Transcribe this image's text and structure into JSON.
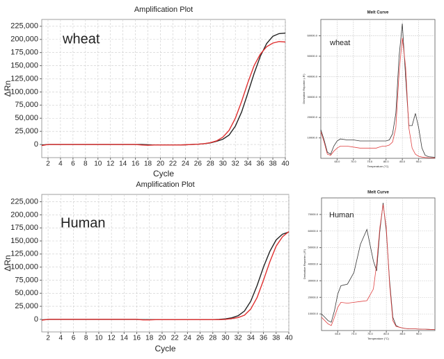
{
  "chart_data": [
    {
      "type": "line",
      "title": "Amplification Plot",
      "annotation": "wheat",
      "xlabel": "Cycle",
      "ylabel": "ΔRn",
      "grid": true,
      "x": [
        1,
        2,
        3,
        4,
        5,
        6,
        7,
        8,
        9,
        10,
        11,
        12,
        13,
        14,
        15,
        16,
        17,
        18,
        19,
        20,
        21,
        22,
        23,
        24,
        25,
        26,
        27,
        28,
        29,
        30,
        31,
        32,
        33,
        34,
        35,
        36,
        37,
        38,
        39,
        40
      ],
      "xlim": [
        1,
        40
      ],
      "xticks": [
        2,
        4,
        6,
        8,
        10,
        12,
        14,
        16,
        18,
        20,
        22,
        24,
        26,
        28,
        30,
        32,
        34,
        36,
        38,
        40
      ],
      "ylim": [
        -25000,
        238000
      ],
      "yticks": [
        0,
        {
          "value": 25000,
          "label": "25,000"
        },
        {
          "value": 50000,
          "label": "50,000"
        },
        {
          "value": 75000,
          "label": "75,000"
        },
        {
          "value": 100000,
          "label": "100,000"
        },
        {
          "value": 125000,
          "label": "125,000"
        },
        {
          "value": 150000,
          "label": "150,000"
        },
        {
          "value": 175000,
          "label": "175,000"
        },
        {
          "value": 200000,
          "label": "200,000"
        },
        {
          "value": 225000,
          "label": "225,000"
        }
      ],
      "series": [
        {
          "color": "#222222",
          "values": [
            -1000,
            0,
            0,
            0,
            0,
            0,
            0,
            0,
            0,
            0,
            0,
            0,
            0,
            0,
            0,
            0,
            0,
            -500,
            -1000,
            -1000,
            -1000,
            -1000,
            -1000,
            -500,
            0,
            500,
            1500,
            3000,
            6000,
            10000,
            18000,
            35000,
            62000,
            98000,
            135000,
            168000,
            192000,
            206000,
            211000,
            212000
          ]
        },
        {
          "color": "#e03030",
          "values": [
            -2000,
            0,
            0,
            0,
            0,
            0,
            0,
            0,
            0,
            0,
            0,
            0,
            0,
            0,
            0,
            0,
            -1000,
            -1500,
            -1000,
            -1000,
            -1000,
            -1000,
            -1000,
            -500,
            0,
            500,
            1500,
            3500,
            7000,
            14000,
            27000,
            50000,
            82000,
            118000,
            150000,
            172000,
            186000,
            193000,
            196000,
            195000
          ]
        }
      ]
    },
    {
      "type": "line",
      "title": "Melt Curve",
      "annotation": "wheat",
      "xlabel": "Temperature (°C)",
      "ylabel": "Derivative Reporter (-R')",
      "grid": true,
      "x": [
        60,
        61,
        62,
        63,
        64,
        65,
        66,
        68,
        70,
        72,
        74,
        76,
        77,
        78,
        79,
        80,
        81,
        82,
        83,
        84,
        85,
        86,
        87,
        88,
        89,
        90,
        91,
        92,
        93,
        95
      ],
      "xlim": [
        60,
        95
      ],
      "xticks": [
        {
          "value": 65,
          "label": "65.0"
        },
        {
          "value": 70,
          "label": "70.0"
        },
        {
          "value": 75,
          "label": "75.0"
        },
        {
          "value": 80,
          "label": "80.0"
        },
        {
          "value": 85,
          "label": "85.0"
        },
        {
          "value": 90,
          "label": "90.0"
        }
      ],
      "ylim": [
        0,
        68000
      ],
      "yticks": [
        {
          "value": 10000,
          "label": "10000.0"
        },
        {
          "value": 20000,
          "label": "20000.0"
        },
        {
          "value": 30000,
          "label": "30000.0"
        },
        {
          "value": 40000,
          "label": "40000.0"
        },
        {
          "value": 50000,
          "label": "50000.0"
        },
        {
          "value": 60000,
          "label": "60000.0"
        }
      ],
      "series": [
        {
          "color": "#333333",
          "values": [
            14000,
            9000,
            3000,
            2000,
            6000,
            8500,
            9500,
            9000,
            9000,
            8500,
            8500,
            8500,
            8500,
            8500,
            8500,
            8500,
            9000,
            12000,
            22000,
            50000,
            66000,
            40000,
            16000,
            16000,
            22000,
            15000,
            5000,
            1500,
            800,
            500
          ]
        },
        {
          "color": "#e04040",
          "values": [
            13000,
            8000,
            2000,
            1500,
            3500,
            5000,
            6000,
            6000,
            5500,
            5000,
            5000,
            5000,
            5000,
            5500,
            6000,
            6000,
            6500,
            8000,
            15000,
            42000,
            59000,
            45000,
            15000,
            5000,
            2000,
            1000,
            600,
            400,
            300,
            200
          ]
        }
      ]
    },
    {
      "type": "line",
      "title": "Amplification Plot",
      "annotation": "Human",
      "xlabel": "Cycle",
      "ylabel": "ΔRn",
      "grid": true,
      "x": [
        1,
        2,
        3,
        4,
        5,
        6,
        7,
        8,
        9,
        10,
        11,
        12,
        13,
        14,
        15,
        16,
        17,
        18,
        19,
        20,
        21,
        22,
        23,
        24,
        25,
        26,
        27,
        28,
        29,
        30,
        31,
        32,
        33,
        34,
        35,
        36,
        37,
        38,
        39,
        40
      ],
      "xlim": [
        1,
        40
      ],
      "xticks": [
        2,
        4,
        6,
        8,
        10,
        12,
        14,
        16,
        18,
        20,
        22,
        24,
        26,
        28,
        30,
        32,
        34,
        36,
        38,
        40
      ],
      "ylim": [
        -24000,
        239000
      ],
      "yticks": [
        0,
        {
          "value": 25000,
          "label": "25,000"
        },
        {
          "value": 50000,
          "label": "50,000"
        },
        {
          "value": 75000,
          "label": "75,000"
        },
        {
          "value": 100000,
          "label": "100,000"
        },
        {
          "value": 125000,
          "label": "125,000"
        },
        {
          "value": 150000,
          "label": "150,000"
        },
        {
          "value": 175000,
          "label": "175,000"
        },
        {
          "value": 200000,
          "label": "200,000"
        },
        {
          "value": 225000,
          "label": "225,000"
        }
      ],
      "series": [
        {
          "color": "#222222",
          "values": [
            -1000,
            0,
            0,
            0,
            0,
            0,
            0,
            0,
            0,
            0,
            0,
            0,
            0,
            0,
            0,
            0,
            -500,
            -500,
            -500,
            -500,
            -500,
            -500,
            -500,
            -500,
            -500,
            -500,
            -500,
            -500,
            0,
            1000,
            3000,
            7000,
            16000,
            35000,
            65000,
            100000,
            130000,
            152000,
            163000,
            167000
          ]
        },
        {
          "color": "#e03030",
          "values": [
            -1500,
            0,
            0,
            0,
            0,
            0,
            0,
            0,
            0,
            0,
            0,
            0,
            0,
            0,
            0,
            0,
            -1000,
            -1000,
            -500,
            -500,
            -500,
            -500,
            -500,
            -500,
            -500,
            -500,
            -500,
            -500,
            -500,
            0,
            1500,
            3500,
            8000,
            20000,
            42000,
            75000,
            110000,
            140000,
            158000,
            168000
          ]
        }
      ]
    },
    {
      "type": "line",
      "title": "Melt Curve",
      "annotation": "Human",
      "xlabel": "Temperature (°C)",
      "ylabel": "Derivative Reporter (-R')",
      "grid": true,
      "x": [
        60,
        61,
        62,
        63,
        64,
        65,
        66,
        68,
        70,
        72,
        74,
        76,
        77,
        78,
        79,
        80,
        81,
        82,
        83,
        84,
        85,
        86,
        87,
        88,
        89,
        90,
        91,
        92,
        93,
        95
      ],
      "xlim": [
        60,
        95
      ],
      "xticks": [
        {
          "value": 65,
          "label": "65.0"
        },
        {
          "value": 70,
          "label": "70.0"
        },
        {
          "value": 75,
          "label": "75.0"
        },
        {
          "value": 80,
          "label": "80.0"
        },
        {
          "value": 85,
          "label": "85.0"
        },
        {
          "value": 90,
          "label": "90.0"
        }
      ],
      "ylim": [
        0,
        80000
      ],
      "yticks": [
        {
          "value": 10000,
          "label": "10000.0"
        },
        {
          "value": 20000,
          "label": "20000.0"
        },
        {
          "value": 30000,
          "label": "30000.0"
        },
        {
          "value": 40000,
          "label": "40000.0"
        },
        {
          "value": 50000,
          "label": "50000.0"
        },
        {
          "value": 60000,
          "label": "60000.0"
        },
        {
          "value": 70000,
          "label": "70000.0"
        }
      ],
      "series": [
        {
          "color": "#333333",
          "values": [
            10000,
            8000,
            6000,
            5000,
            12000,
            22000,
            27000,
            28000,
            35000,
            52000,
            61000,
            42000,
            36000,
            60000,
            77000,
            60000,
            30000,
            8000,
            3000,
            2000,
            1500,
            1200,
            1000,
            1000,
            1000,
            900,
            800,
            800,
            700,
            600
          ]
        },
        {
          "color": "#e04040",
          "values": [
            8000,
            6000,
            4000,
            3000,
            8000,
            14000,
            17000,
            16500,
            17000,
            17500,
            18000,
            25000,
            40000,
            62000,
            76000,
            62000,
            28000,
            6000,
            2500,
            2000,
            1500,
            1200,
            1000,
            1000,
            1000,
            900,
            800,
            800,
            700,
            600
          ]
        }
      ]
    }
  ]
}
